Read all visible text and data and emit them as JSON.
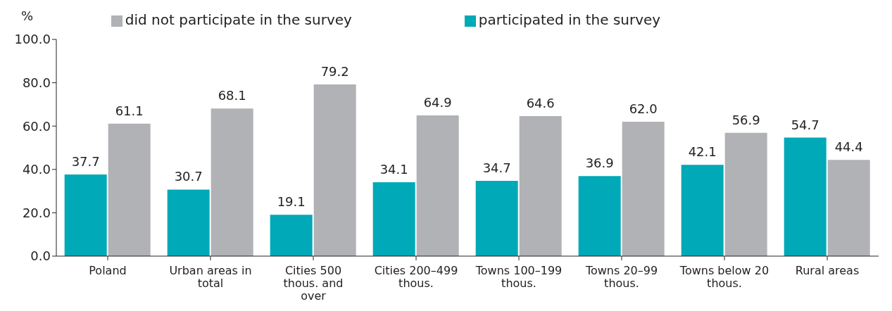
{
  "chart_data": {
    "type": "bar",
    "ylabel": "%",
    "categories": [
      "Poland",
      "Urban areas in total",
      "Cities 500 thous. and over",
      "Cities 200–499 thous.",
      "Towns 100–199 thous.",
      "Towns 20–99 thous.",
      "Towns below 20 thous.",
      "Rural areas"
    ],
    "series": [
      {
        "name": "participated in the survey",
        "color": "#00a9b7",
        "values": [
          37.7,
          30.7,
          19.1,
          34.1,
          34.7,
          36.9,
          42.1,
          54.7
        ],
        "value_labels": [
          "37.7",
          "30.7",
          "19.1",
          "34.1",
          "34.7",
          "36.9",
          "42.1",
          "54.7"
        ]
      },
      {
        "name": "did not participate in the survey",
        "color": "#b1b2b6",
        "values": [
          61.1,
          68.1,
          79.2,
          64.9,
          64.6,
          62.0,
          56.9,
          44.4
        ],
        "value_labels": [
          "61.1",
          "68.1",
          "79.2",
          "64.9",
          "64.6",
          "62.0",
          "56.9",
          "44.4"
        ]
      }
    ],
    "ylim": [
      0,
      100
    ],
    "yticks": [
      {
        "value": 0,
        "label": "0.0"
      },
      {
        "value": 20,
        "label": "20.0"
      },
      {
        "value": 40,
        "label": "40.0"
      },
      {
        "value": 60,
        "label": "60.0"
      },
      {
        "value": 80,
        "label": "80.0"
      },
      {
        "value": 100,
        "label": "100.0"
      }
    ],
    "grid": false,
    "legend": "top"
  }
}
